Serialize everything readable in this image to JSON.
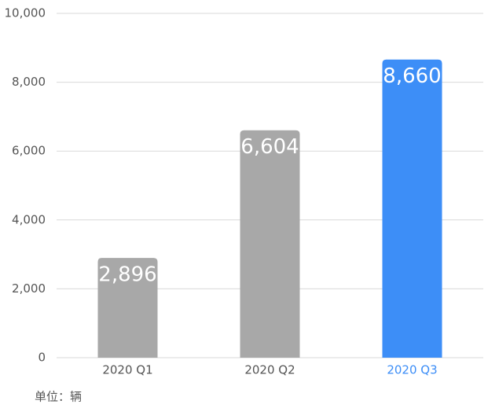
{
  "chart_data": {
    "type": "bar",
    "categories": [
      "2020 Q1",
      "2020 Q2",
      "2020 Q3"
    ],
    "values": [
      2896,
      6604,
      8660
    ],
    "value_labels": [
      "2,896",
      "6,604",
      "8,660"
    ],
    "colors": [
      "#a8a8a8",
      "#a8a8a8",
      "#3d8ef7"
    ],
    "category_label_colors": [
      "#555555",
      "#555555",
      "#3d8ef7"
    ],
    "ylim": [
      0,
      10000
    ],
    "yticks": [
      0,
      {
        "value": 2000,
        "label": "2,000"
      },
      {
        "value": 4000,
        "label": "4,000"
      },
      {
        "value": 6000,
        "label": "6,000"
      },
      {
        "value": 8000,
        "label": "8,000"
      },
      {
        "value": 10000,
        "label": "10,000"
      }
    ],
    "grid": true,
    "unit_note": "单位：辆"
  }
}
